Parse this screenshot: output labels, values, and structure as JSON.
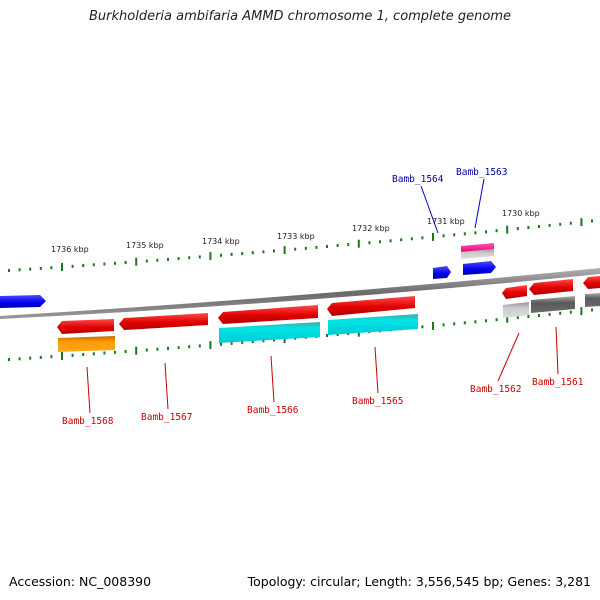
{
  "title": "Burkholderia ambifaria AMMD chromosome 1, complete genome",
  "footer": {
    "accession": "Accession: NC_008390",
    "topology": "Topology: circular; Length: 3,556,545 bp; Genes: 3,281"
  },
  "scale_labels": [
    "1736 kbp",
    "1735 kbp",
    "1734 kbp",
    "1733 kbp",
    "1732 kbp",
    "1731 kbp",
    "1730 kbp"
  ],
  "gene_labels_upper": [
    "Bamb_1564",
    "Bamb_1563"
  ],
  "gene_labels_lower": [
    "Bamb_1568",
    "Bamb_1567",
    "Bamb_1566",
    "Bamb_1565",
    "Bamb_1562",
    "Bamb_1561"
  ],
  "colors": {
    "upper_label": "#0000aa",
    "lower_label": "#cc0000",
    "tick": "#1a7a1a",
    "backbone": "#7a7a7a"
  }
}
